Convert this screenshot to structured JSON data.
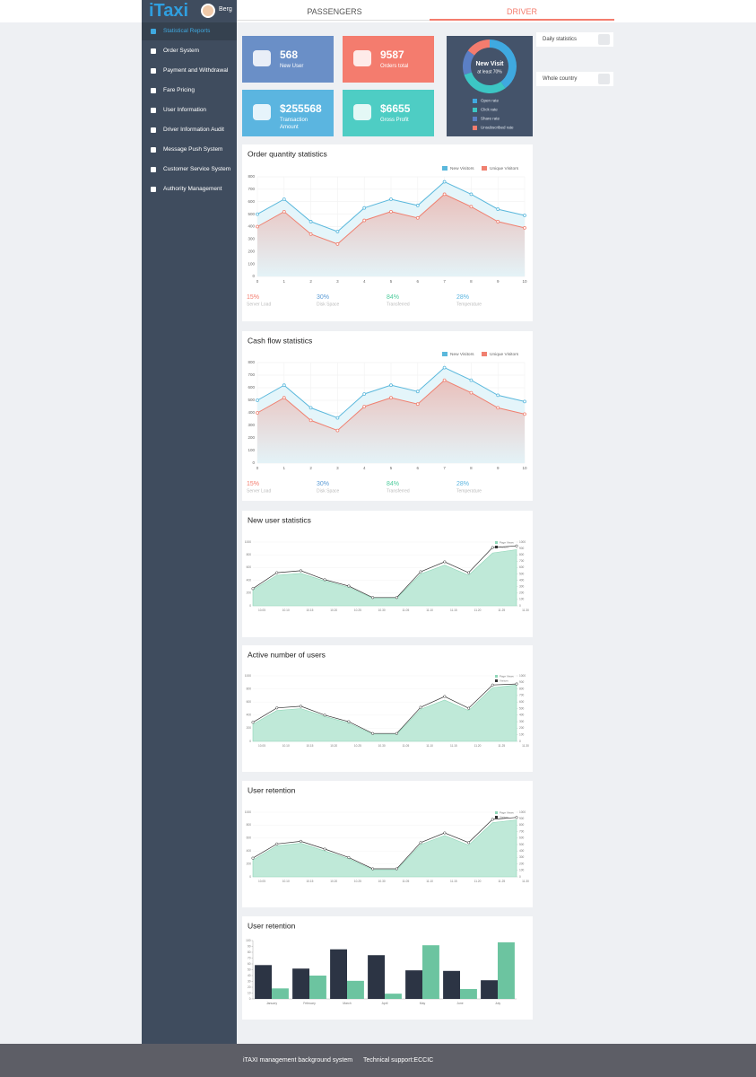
{
  "header": {
    "logo": "iTaxi",
    "user": "Berg"
  },
  "tabs": [
    {
      "label": "PASSENGERS"
    },
    {
      "label": "DRIVER"
    }
  ],
  "menu": [
    "Statistical Reports",
    "Order System",
    "Payment and Withdrawal",
    "Fare Pricing",
    "User Information",
    "Driver Information Audit",
    "Message Push System",
    "Customer Service System",
    "Authority Management"
  ],
  "cards": [
    {
      "value": "568",
      "label": "New User",
      "color": "#6a8fc7"
    },
    {
      "value": "9587",
      "label": "Orders total",
      "color": "#f47c6e"
    },
    {
      "value": "$255568",
      "label": "Transaction Amount",
      "color": "#5bb5e0"
    },
    {
      "value": "$6655",
      "label": "Gross Profit",
      "color": "#4ecdc4"
    }
  ],
  "side_panels": [
    "Daily statistics",
    "Whole country"
  ],
  "footer": {
    "system": "iTAXI management background system",
    "support": "Technical support:ECCIC"
  },
  "chart_data": [
    {
      "type": "pie",
      "title": "New Visit",
      "subtitle": "at least 70%",
      "categories": [
        "Open rate",
        "Click rate",
        "Share rate",
        "Unsubscribed rate"
      ],
      "values": [
        40,
        30,
        15,
        15
      ],
      "colors": [
        "#3fa9e0",
        "#3cc6c4",
        "#5b7fc5",
        "#f47c6e"
      ]
    },
    {
      "type": "line",
      "title": "Order quantity statistics",
      "x": [
        0,
        1,
        2,
        3,
        4,
        5,
        6,
        7,
        8,
        9,
        10
      ],
      "xlim": [
        0,
        10
      ],
      "xticks": [
        0,
        1,
        2,
        3,
        4,
        5,
        6,
        7,
        8,
        9,
        10
      ],
      "ylim": [
        0,
        800
      ],
      "yticks": [
        0,
        100,
        200,
        300,
        400,
        500,
        600,
        700,
        800
      ],
      "grid": true,
      "series": [
        {
          "name": "New Visitors",
          "color": "#5bb8dc",
          "values": [
            500,
            620,
            440,
            360,
            550,
            620,
            570,
            760,
            660,
            540,
            490
          ]
        },
        {
          "name": "Unique Visitors",
          "color": "#f08070",
          "values": [
            400,
            520,
            340,
            260,
            450,
            520,
            470,
            660,
            560,
            440,
            390
          ]
        }
      ],
      "stats": [
        {
          "value": "15%",
          "label": "Server Load",
          "color": "#f47c6e"
        },
        {
          "value": "30%",
          "label": "Disk Space",
          "color": "#5b9bd5"
        },
        {
          "value": "84%",
          "label": "Transferred",
          "color": "#4ecb9c"
        },
        {
          "value": "28%",
          "label": "Temperature",
          "color": "#5bb5e0"
        }
      ]
    },
    {
      "type": "line",
      "title": "Cash flow statistics",
      "x": [
        0,
        1,
        2,
        3,
        4,
        5,
        6,
        7,
        8,
        9,
        10
      ],
      "xlim": [
        0,
        10
      ],
      "xticks": [
        0,
        1,
        2,
        3,
        4,
        5,
        6,
        7,
        8,
        9,
        10
      ],
      "ylim": [
        0,
        800
      ],
      "yticks": [
        0,
        100,
        200,
        300,
        400,
        500,
        600,
        700,
        800
      ],
      "grid": true,
      "series": [
        {
          "name": "New Visitors",
          "color": "#5bb8dc",
          "values": [
            500,
            620,
            440,
            360,
            550,
            620,
            570,
            760,
            660,
            540,
            490
          ]
        },
        {
          "name": "Unique Visitors",
          "color": "#f08070",
          "values": [
            400,
            520,
            340,
            260,
            450,
            520,
            470,
            660,
            560,
            440,
            390
          ]
        }
      ],
      "stats": [
        {
          "value": "15%",
          "label": "Server Load",
          "color": "#f47c6e"
        },
        {
          "value": "30%",
          "label": "Disk Space",
          "color": "#5b9bd5"
        },
        {
          "value": "84%",
          "label": "Transferred",
          "color": "#4ecb9c"
        },
        {
          "value": "28%",
          "label": "Temperature",
          "color": "#5bb5e0"
        }
      ]
    },
    {
      "type": "area",
      "title": "New user statistics",
      "categories": [
        "10.05",
        "10.10",
        "10.15",
        "10.20",
        "10.25",
        "10.30",
        "11.05",
        "11.10",
        "11.15",
        "11.20",
        "11.25",
        "11.30"
      ],
      "ylim": [
        0,
        1000
      ],
      "yticks": [
        0,
        200,
        400,
        600,
        800,
        1000
      ],
      "y2lim": [
        0,
        1000
      ],
      "y2ticks": [
        0,
        100,
        200,
        300,
        400,
        500,
        600,
        700,
        800,
        900,
        1000
      ],
      "series": [
        {
          "name": "Page Views",
          "color": "#bfe9d8",
          "axis": "y2",
          "values": [
            250,
            480,
            510,
            390,
            290,
            120,
            120,
            500,
            640,
            480,
            830,
            880
          ]
        },
        {
          "name": "Visitors",
          "color": "#333333",
          "values": [
            270,
            520,
            550,
            410,
            310,
            130,
            130,
            535,
            690,
            520,
            915,
            940
          ]
        }
      ]
    },
    {
      "type": "area",
      "title": "Active number of users",
      "categories": [
        "10.05",
        "10.10",
        "10.15",
        "10.20",
        "10.25",
        "10.30",
        "11.05",
        "11.10",
        "11.15",
        "11.20",
        "11.25",
        "11.30"
      ],
      "ylim": [
        0,
        1000
      ],
      "yticks": [
        0,
        200,
        400,
        600,
        800,
        1000
      ],
      "y2lim": [
        0,
        1000
      ],
      "y2ticks": [
        0,
        100,
        200,
        300,
        400,
        500,
        600,
        700,
        800,
        900,
        1000
      ],
      "series": [
        {
          "name": "Page Views",
          "color": "#bfe9d8",
          "axis": "y2",
          "values": [
            260,
            470,
            500,
            380,
            280,
            110,
            110,
            490,
            630,
            470,
            820,
            860
          ]
        },
        {
          "name": "Visitors",
          "color": "#333333",
          "values": [
            290,
            510,
            535,
            400,
            300,
            120,
            120,
            520,
            685,
            505,
            860,
            875
          ]
        }
      ]
    },
    {
      "type": "area",
      "title": "User retention",
      "categories": [
        "10.05",
        "10.10",
        "10.15",
        "10.20",
        "10.25",
        "10.30",
        "11.05",
        "11.10",
        "11.15",
        "11.20",
        "11.25",
        "11.30"
      ],
      "ylim": [
        0,
        1000
      ],
      "yticks": [
        0,
        200,
        400,
        600,
        800,
        1000
      ],
      "y2lim": [
        0,
        1000
      ],
      "y2ticks": [
        0,
        100,
        200,
        300,
        400,
        500,
        600,
        700,
        800,
        900,
        1000
      ],
      "series": [
        {
          "name": "Page Views",
          "color": "#bfe9d8",
          "axis": "y2",
          "values": [
            260,
            480,
            520,
            400,
            280,
            110,
            110,
            500,
            640,
            490,
            840,
            880
          ]
        },
        {
          "name": "Visitors",
          "color": "#333333",
          "values": [
            290,
            510,
            550,
            430,
            300,
            125,
            125,
            530,
            680,
            530,
            890,
            920
          ]
        }
      ]
    },
    {
      "type": "bar",
      "title": "User retention",
      "categories": [
        "January",
        "February",
        "March",
        "April",
        "May",
        "June",
        "July"
      ],
      "ylim": [
        0,
        100
      ],
      "yticks": [
        0,
        10,
        20,
        30,
        40,
        50,
        60,
        70,
        80,
        90,
        100
      ],
      "series": [
        {
          "color": "#2c3444",
          "values": [
            58,
            52,
            85,
            75,
            49,
            48,
            32
          ]
        },
        {
          "color": "#6cc4a0",
          "values": [
            18,
            40,
            31,
            9,
            92,
            17,
            97
          ]
        }
      ]
    }
  ]
}
